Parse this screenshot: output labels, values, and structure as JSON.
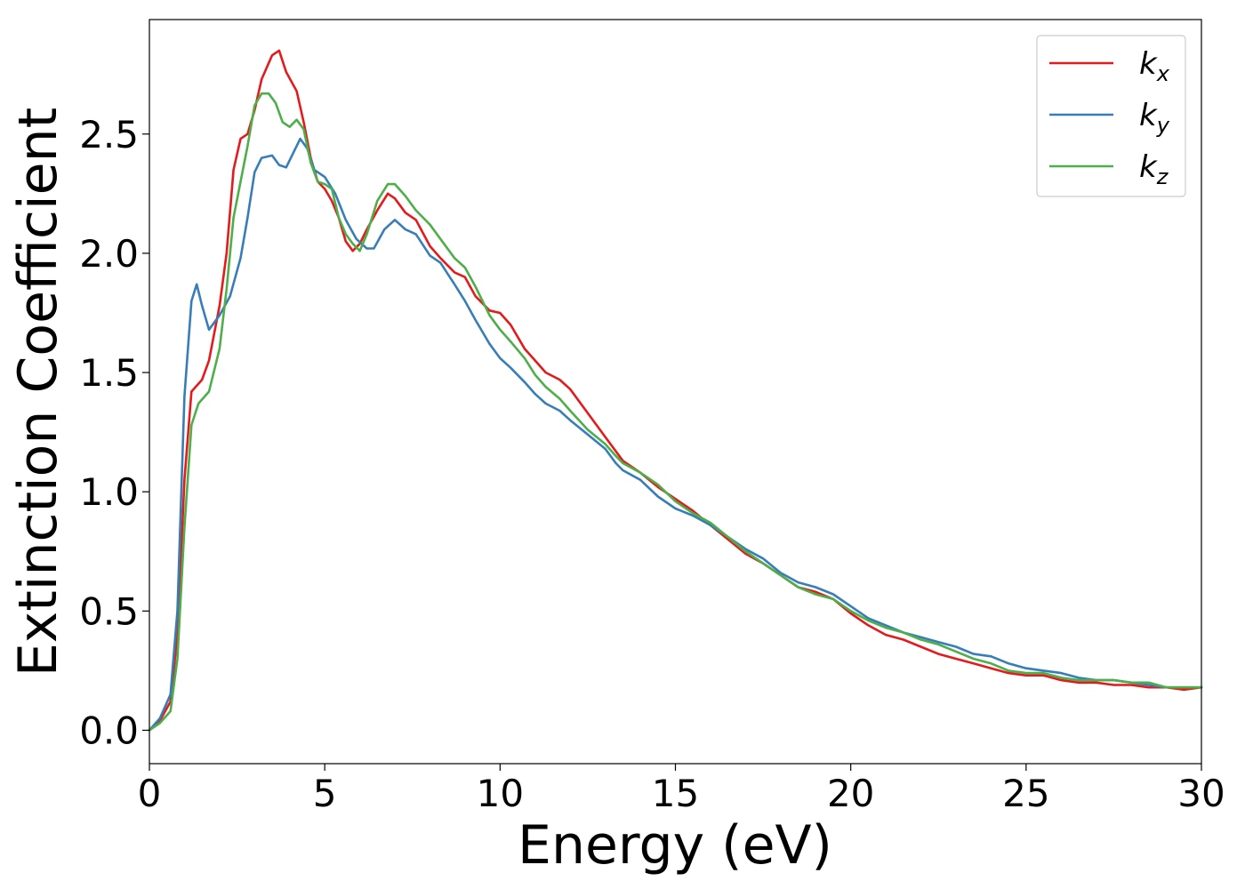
{
  "chart_data": {
    "type": "line",
    "xlabel": "Energy (eV)",
    "ylabel": "Extinction Coefficient",
    "xlim": [
      0,
      30
    ],
    "ylim": [
      -0.14,
      2.98
    ],
    "xticks": [
      0,
      5,
      10,
      15,
      20,
      25,
      30
    ],
    "xtick_labels": [
      "0",
      "5",
      "10",
      "15",
      "20",
      "25",
      "30"
    ],
    "yticks": [
      0.0,
      0.5,
      1.0,
      1.5,
      2.0,
      2.5
    ],
    "ytick_labels": [
      "0.0",
      "0.5",
      "1.0",
      "1.5",
      "2.0",
      "2.5"
    ],
    "grid": false,
    "legend_position": "top-right",
    "series": [
      {
        "name": "k_x",
        "name_base": "k",
        "name_sub": "x",
        "color": "#e41a1c",
        "points": [
          [
            0,
            0
          ],
          [
            0.3,
            0.04
          ],
          [
            0.6,
            0.12
          ],
          [
            0.8,
            0.4
          ],
          [
            1.0,
            1.05
          ],
          [
            1.2,
            1.42
          ],
          [
            1.5,
            1.47
          ],
          [
            1.7,
            1.55
          ],
          [
            2.0,
            1.78
          ],
          [
            2.2,
            2.0
          ],
          [
            2.4,
            2.35
          ],
          [
            2.6,
            2.48
          ],
          [
            2.8,
            2.5
          ],
          [
            3.0,
            2.6
          ],
          [
            3.2,
            2.73
          ],
          [
            3.5,
            2.83
          ],
          [
            3.7,
            2.85
          ],
          [
            3.9,
            2.76
          ],
          [
            4.2,
            2.68
          ],
          [
            4.4,
            2.55
          ],
          [
            4.6,
            2.4
          ],
          [
            4.8,
            2.3
          ],
          [
            5.0,
            2.27
          ],
          [
            5.2,
            2.22
          ],
          [
            5.4,
            2.15
          ],
          [
            5.6,
            2.05
          ],
          [
            5.8,
            2.01
          ],
          [
            6.0,
            2.04
          ],
          [
            6.2,
            2.1
          ],
          [
            6.5,
            2.18
          ],
          [
            6.8,
            2.25
          ],
          [
            7.0,
            2.23
          ],
          [
            7.3,
            2.17
          ],
          [
            7.6,
            2.14
          ],
          [
            8.0,
            2.03
          ],
          [
            8.3,
            1.98
          ],
          [
            8.7,
            1.92
          ],
          [
            9.0,
            1.9
          ],
          [
            9.3,
            1.82
          ],
          [
            9.7,
            1.76
          ],
          [
            10.0,
            1.75
          ],
          [
            10.3,
            1.7
          ],
          [
            10.7,
            1.6
          ],
          [
            11.0,
            1.55
          ],
          [
            11.3,
            1.5
          ],
          [
            11.7,
            1.47
          ],
          [
            12.0,
            1.43
          ],
          [
            12.5,
            1.33
          ],
          [
            13.0,
            1.23
          ],
          [
            13.5,
            1.13
          ],
          [
            14.0,
            1.08
          ],
          [
            14.5,
            1.02
          ],
          [
            15.0,
            0.97
          ],
          [
            15.5,
            0.92
          ],
          [
            16.0,
            0.86
          ],
          [
            16.5,
            0.8
          ],
          [
            17.0,
            0.74
          ],
          [
            17.5,
            0.7
          ],
          [
            18.0,
            0.65
          ],
          [
            18.5,
            0.6
          ],
          [
            19.0,
            0.58
          ],
          [
            19.5,
            0.55
          ],
          [
            20.0,
            0.49
          ],
          [
            20.5,
            0.44
          ],
          [
            21.0,
            0.4
          ],
          [
            21.5,
            0.38
          ],
          [
            22.0,
            0.35
          ],
          [
            22.5,
            0.32
          ],
          [
            23.0,
            0.3
          ],
          [
            23.5,
            0.28
          ],
          [
            24.0,
            0.26
          ],
          [
            24.5,
            0.24
          ],
          [
            25.0,
            0.23
          ],
          [
            25.5,
            0.23
          ],
          [
            26.0,
            0.21
          ],
          [
            26.5,
            0.2
          ],
          [
            27.0,
            0.2
          ],
          [
            27.5,
            0.19
          ],
          [
            28.0,
            0.19
          ],
          [
            28.5,
            0.18
          ],
          [
            29.0,
            0.18
          ],
          [
            29.5,
            0.17
          ],
          [
            30.0,
            0.18
          ]
        ]
      },
      {
        "name": "k_y",
        "name_base": "k",
        "name_sub": "y",
        "color": "#377eb8",
        "points": [
          [
            0,
            0
          ],
          [
            0.3,
            0.05
          ],
          [
            0.6,
            0.15
          ],
          [
            0.8,
            0.5
          ],
          [
            1.0,
            1.4
          ],
          [
            1.2,
            1.8
          ],
          [
            1.35,
            1.87
          ],
          [
            1.5,
            1.78
          ],
          [
            1.7,
            1.68
          ],
          [
            2.0,
            1.74
          ],
          [
            2.3,
            1.82
          ],
          [
            2.6,
            1.98
          ],
          [
            2.8,
            2.15
          ],
          [
            3.0,
            2.34
          ],
          [
            3.2,
            2.4
          ],
          [
            3.5,
            2.41
          ],
          [
            3.7,
            2.37
          ],
          [
            3.9,
            2.36
          ],
          [
            4.1,
            2.42
          ],
          [
            4.3,
            2.48
          ],
          [
            4.5,
            2.44
          ],
          [
            4.7,
            2.35
          ],
          [
            5.0,
            2.32
          ],
          [
            5.3,
            2.25
          ],
          [
            5.6,
            2.14
          ],
          [
            5.9,
            2.06
          ],
          [
            6.2,
            2.02
          ],
          [
            6.4,
            2.02
          ],
          [
            6.7,
            2.1
          ],
          [
            7.0,
            2.14
          ],
          [
            7.3,
            2.1
          ],
          [
            7.6,
            2.08
          ],
          [
            8.0,
            1.99
          ],
          [
            8.3,
            1.96
          ],
          [
            8.7,
            1.87
          ],
          [
            9.0,
            1.8
          ],
          [
            9.3,
            1.72
          ],
          [
            9.7,
            1.62
          ],
          [
            10.0,
            1.56
          ],
          [
            10.3,
            1.52
          ],
          [
            10.7,
            1.46
          ],
          [
            11.0,
            1.41
          ],
          [
            11.3,
            1.37
          ],
          [
            11.7,
            1.34
          ],
          [
            12.0,
            1.3
          ],
          [
            12.5,
            1.24
          ],
          [
            13.0,
            1.18
          ],
          [
            13.3,
            1.12
          ],
          [
            13.5,
            1.09
          ],
          [
            14.0,
            1.05
          ],
          [
            14.5,
            0.98
          ],
          [
            15.0,
            0.93
          ],
          [
            15.5,
            0.9
          ],
          [
            16.0,
            0.86
          ],
          [
            16.5,
            0.81
          ],
          [
            17.0,
            0.76
          ],
          [
            17.5,
            0.72
          ],
          [
            18.0,
            0.66
          ],
          [
            18.5,
            0.62
          ],
          [
            19.0,
            0.6
          ],
          [
            19.5,
            0.57
          ],
          [
            20.0,
            0.52
          ],
          [
            20.5,
            0.47
          ],
          [
            21.0,
            0.44
          ],
          [
            21.5,
            0.41
          ],
          [
            22.0,
            0.39
          ],
          [
            22.5,
            0.37
          ],
          [
            23.0,
            0.35
          ],
          [
            23.5,
            0.32
          ],
          [
            24.0,
            0.31
          ],
          [
            24.5,
            0.28
          ],
          [
            25.0,
            0.26
          ],
          [
            25.5,
            0.25
          ],
          [
            26.0,
            0.24
          ],
          [
            26.5,
            0.22
          ],
          [
            27.0,
            0.21
          ],
          [
            27.5,
            0.21
          ],
          [
            28.0,
            0.2
          ],
          [
            28.5,
            0.19
          ],
          [
            29.0,
            0.18
          ],
          [
            29.5,
            0.18
          ],
          [
            30.0,
            0.18
          ]
        ]
      },
      {
        "name": "k_z",
        "name_base": "k",
        "name_sub": "z",
        "color": "#4daf4a",
        "points": [
          [
            0,
            0
          ],
          [
            0.3,
            0.03
          ],
          [
            0.6,
            0.08
          ],
          [
            0.8,
            0.3
          ],
          [
            1.0,
            0.85
          ],
          [
            1.2,
            1.28
          ],
          [
            1.4,
            1.37
          ],
          [
            1.7,
            1.42
          ],
          [
            2.0,
            1.6
          ],
          [
            2.2,
            1.85
          ],
          [
            2.4,
            2.15
          ],
          [
            2.6,
            2.3
          ],
          [
            2.8,
            2.45
          ],
          [
            3.0,
            2.62
          ],
          [
            3.2,
            2.67
          ],
          [
            3.4,
            2.67
          ],
          [
            3.6,
            2.63
          ],
          [
            3.8,
            2.55
          ],
          [
            4.0,
            2.53
          ],
          [
            4.2,
            2.56
          ],
          [
            4.4,
            2.52
          ],
          [
            4.6,
            2.38
          ],
          [
            4.8,
            2.3
          ],
          [
            5.0,
            2.29
          ],
          [
            5.2,
            2.27
          ],
          [
            5.4,
            2.15
          ],
          [
            5.6,
            2.08
          ],
          [
            5.8,
            2.04
          ],
          [
            6.0,
            2.01
          ],
          [
            6.2,
            2.08
          ],
          [
            6.5,
            2.22
          ],
          [
            6.8,
            2.29
          ],
          [
            7.0,
            2.29
          ],
          [
            7.3,
            2.24
          ],
          [
            7.6,
            2.18
          ],
          [
            8.0,
            2.12
          ],
          [
            8.3,
            2.06
          ],
          [
            8.7,
            1.98
          ],
          [
            9.0,
            1.94
          ],
          [
            9.3,
            1.86
          ],
          [
            9.7,
            1.74
          ],
          [
            10.0,
            1.68
          ],
          [
            10.3,
            1.63
          ],
          [
            10.7,
            1.56
          ],
          [
            11.0,
            1.49
          ],
          [
            11.3,
            1.44
          ],
          [
            11.7,
            1.39
          ],
          [
            12.0,
            1.34
          ],
          [
            12.5,
            1.26
          ],
          [
            13.0,
            1.2
          ],
          [
            13.3,
            1.15
          ],
          [
            13.5,
            1.12
          ],
          [
            14.0,
            1.08
          ],
          [
            14.5,
            1.03
          ],
          [
            15.0,
            0.96
          ],
          [
            15.5,
            0.91
          ],
          [
            16.0,
            0.87
          ],
          [
            16.5,
            0.81
          ],
          [
            17.0,
            0.75
          ],
          [
            17.5,
            0.7
          ],
          [
            18.0,
            0.65
          ],
          [
            18.5,
            0.6
          ],
          [
            19.0,
            0.57
          ],
          [
            19.5,
            0.55
          ],
          [
            20.0,
            0.5
          ],
          [
            20.5,
            0.46
          ],
          [
            21.0,
            0.43
          ],
          [
            21.5,
            0.41
          ],
          [
            22.0,
            0.38
          ],
          [
            22.5,
            0.36
          ],
          [
            23.0,
            0.33
          ],
          [
            23.5,
            0.3
          ],
          [
            24.0,
            0.28
          ],
          [
            24.5,
            0.25
          ],
          [
            25.0,
            0.24
          ],
          [
            25.5,
            0.24
          ],
          [
            26.0,
            0.22
          ],
          [
            26.5,
            0.21
          ],
          [
            27.0,
            0.21
          ],
          [
            27.5,
            0.21
          ],
          [
            28.0,
            0.2
          ],
          [
            28.5,
            0.2
          ],
          [
            29.0,
            0.18
          ],
          [
            29.5,
            0.18
          ],
          [
            30.0,
            0.18
          ]
        ]
      }
    ]
  }
}
